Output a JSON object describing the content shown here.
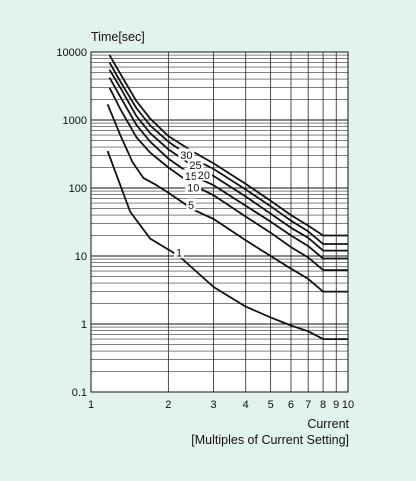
{
  "chart_data": {
    "type": "line",
    "title": "",
    "ylabel": "Time[sec]",
    "xlabel": "Current",
    "xlabel_sub": "[Multiples of Current Setting]",
    "xscale": "log",
    "yscale": "log",
    "xlim": [
      1,
      10
    ],
    "ylim": [
      0.1,
      10000
    ],
    "x_ticks": [
      {
        "value": 1,
        "label": "1"
      },
      {
        "value": 2,
        "label": "2"
      },
      {
        "value": 3,
        "label": "3"
      },
      {
        "value": 4,
        "label": "4"
      },
      {
        "value": 5,
        "label": "5"
      },
      {
        "value": 6,
        "label": "6"
      },
      {
        "value": 7,
        "label": "7"
      },
      {
        "value": 8,
        "label": "8"
      },
      {
        "value": 9,
        "label": "9"
      },
      {
        "value": 10,
        "label": "10"
      }
    ],
    "y_ticks": [
      {
        "value": 0.1,
        "label": "0.1"
      },
      {
        "value": 1,
        "label": "1"
      },
      {
        "value": 10,
        "label": "10"
      },
      {
        "value": 100,
        "label": "100"
      },
      {
        "value": 1000,
        "label": "1000"
      },
      {
        "value": 10000,
        "label": "10000"
      }
    ],
    "grid": true,
    "series": [
      {
        "name": "1",
        "label_at": [
          2.2,
          11
        ],
        "points": [
          [
            1.16,
            350
          ],
          [
            1.3,
            110
          ],
          [
            1.42,
            45
          ],
          [
            1.7,
            18
          ],
          [
            2.2,
            10
          ],
          [
            3,
            3.5
          ],
          [
            4,
            1.8
          ],
          [
            5,
            1.25
          ],
          [
            6,
            0.95
          ],
          [
            7,
            0.78
          ],
          [
            8,
            0.6
          ],
          [
            9,
            0.6
          ],
          [
            10,
            0.6
          ]
        ]
      },
      {
        "name": "5",
        "label_at": [
          2.45,
          55
        ],
        "points": [
          [
            1.16,
            1700
          ],
          [
            1.3,
            600
          ],
          [
            1.45,
            240
          ],
          [
            1.6,
            140
          ],
          [
            1.8,
            110
          ],
          [
            2,
            85
          ],
          [
            2.5,
            48
          ],
          [
            3,
            35
          ],
          [
            4,
            17
          ],
          [
            5,
            10
          ],
          [
            6,
            6.5
          ],
          [
            7,
            4.6
          ],
          [
            8,
            3
          ],
          [
            9,
            3
          ],
          [
            10,
            3
          ]
        ]
      },
      {
        "name": "10",
        "label_at": [
          2.5,
          100
        ],
        "points": [
          [
            1.18,
            3000
          ],
          [
            1.3,
            1450
          ],
          [
            1.5,
            560
          ],
          [
            1.7,
            330
          ],
          [
            2,
            200
          ],
          [
            2.5,
            110
          ],
          [
            3,
            78
          ],
          [
            4,
            38
          ],
          [
            5,
            22
          ],
          [
            6,
            13.5
          ],
          [
            7,
            9.5
          ],
          [
            8,
            6.2
          ],
          [
            9,
            6.2
          ],
          [
            10,
            6.2
          ]
        ]
      },
      {
        "name": "15",
        "label_at": [
          2.45,
          148
        ],
        "points": [
          [
            1.18,
            4200
          ],
          [
            1.3,
            2200
          ],
          [
            1.5,
            850
          ],
          [
            1.7,
            480
          ],
          [
            2,
            270
          ],
          [
            2.5,
            150
          ],
          [
            3,
            110
          ],
          [
            4,
            55
          ],
          [
            5,
            32
          ],
          [
            6,
            20
          ],
          [
            7,
            14
          ],
          [
            8,
            9.2
          ],
          [
            9,
            9.2
          ],
          [
            10,
            9.2
          ]
        ]
      },
      {
        "name": "20",
        "label_at": [
          2.75,
          152
        ],
        "points": [
          [
            1.18,
            5500
          ],
          [
            1.3,
            3000
          ],
          [
            1.5,
            1150
          ],
          [
            1.7,
            640
          ],
          [
            2,
            370
          ],
          [
            2.5,
            210
          ],
          [
            3,
            150
          ],
          [
            4,
            75
          ],
          [
            5,
            42
          ],
          [
            6,
            26
          ],
          [
            7,
            18.5
          ],
          [
            8,
            12
          ],
          [
            9,
            12
          ],
          [
            10,
            12
          ]
        ]
      },
      {
        "name": "25",
        "label_at": [
          2.55,
          215
        ],
        "points": [
          [
            1.18,
            7000
          ],
          [
            1.3,
            3700
          ],
          [
            1.5,
            1500
          ],
          [
            1.7,
            830
          ],
          [
            2,
            480
          ],
          [
            2.5,
            270
          ],
          [
            3,
            190
          ],
          [
            4,
            95
          ],
          [
            5,
            54
          ],
          [
            6,
            33
          ],
          [
            7,
            23
          ],
          [
            8,
            15
          ],
          [
            9,
            15
          ],
          [
            10,
            15
          ]
        ]
      },
      {
        "name": "30",
        "label_at": [
          2.35,
          300
        ],
        "points": [
          [
            1.18,
            9000
          ],
          [
            1.3,
            4800
          ],
          [
            1.5,
            1900
          ],
          [
            1.7,
            1050
          ],
          [
            2,
            580
          ],
          [
            2.5,
            340
          ],
          [
            3,
            230
          ],
          [
            4,
            115
          ],
          [
            5,
            65
          ],
          [
            6,
            40
          ],
          [
            7,
            28
          ],
          [
            8,
            20
          ],
          [
            9,
            20
          ],
          [
            10,
            20
          ]
        ]
      }
    ]
  }
}
